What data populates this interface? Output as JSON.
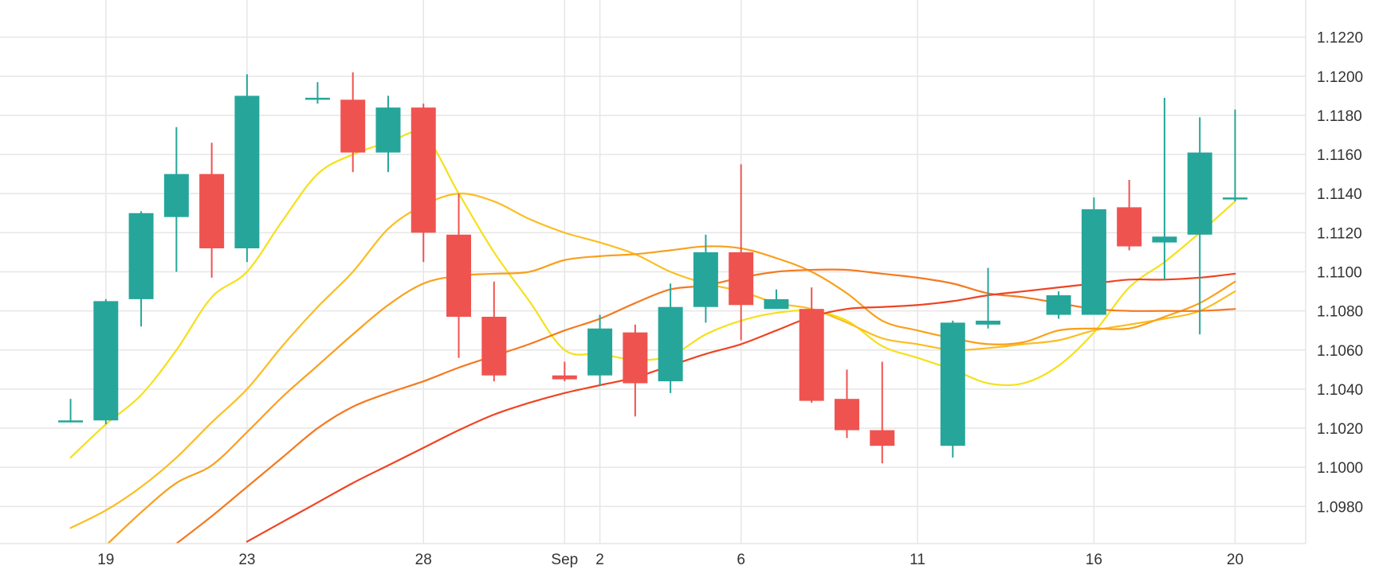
{
  "chart_data": {
    "type": "candlestick",
    "y_ticks": [
      "1.0980",
      "1.1000",
      "1.1020",
      "1.1040",
      "1.1060",
      "1.1080",
      "1.1100",
      "1.1120",
      "1.1140",
      "1.1160",
      "1.1180",
      "1.1200",
      "1.1220"
    ],
    "y_tick_values": [
      1.098,
      1.1,
      1.102,
      1.104,
      1.106,
      1.108,
      1.11,
      1.112,
      1.114,
      1.116,
      1.118,
      1.12,
      1.122
    ],
    "ylim": [
      1.0961,
      1.1239
    ],
    "grid": true,
    "x_ticks": [
      {
        "label": "19",
        "date": "2019-08-19"
      },
      {
        "label": "23",
        "date": "2019-08-23"
      },
      {
        "label": "28",
        "date": "2019-08-28"
      },
      {
        "label": "Sep",
        "date": "2019-09-01"
      },
      {
        "label": "2",
        "date": "2019-09-02"
      },
      {
        "label": "6",
        "date": "2019-09-06"
      },
      {
        "label": "11",
        "date": "2019-09-11"
      },
      {
        "label": "16",
        "date": "2019-09-16"
      },
      {
        "label": "20",
        "date": "2019-09-20"
      }
    ],
    "x_range": [
      "2019-08-16",
      "2019-09-22"
    ],
    "candles": [
      {
        "date": "2019-08-18",
        "open": 1.1024,
        "high": 1.1035,
        "low": 1.1023,
        "close": 1.1024
      },
      {
        "date": "2019-08-19",
        "open": 1.1024,
        "high": 1.1086,
        "low": 1.1022,
        "close": 1.1085
      },
      {
        "date": "2019-08-20",
        "open": 1.1086,
        "high": 1.1131,
        "low": 1.1072,
        "close": 1.113
      },
      {
        "date": "2019-08-21",
        "open": 1.1128,
        "high": 1.1174,
        "low": 1.11,
        "close": 1.115
      },
      {
        "date": "2019-08-22",
        "open": 1.115,
        "high": 1.1166,
        "low": 1.1097,
        "close": 1.1112
      },
      {
        "date": "2019-08-23",
        "open": 1.1112,
        "high": 1.1201,
        "low": 1.1105,
        "close": 1.119
      },
      {
        "date": "2019-08-25",
        "open": 1.1188,
        "high": 1.1197,
        "low": 1.1186,
        "close": 1.1189
      },
      {
        "date": "2019-08-26",
        "open": 1.1188,
        "high": 1.1202,
        "low": 1.1151,
        "close": 1.1161
      },
      {
        "date": "2019-08-27",
        "open": 1.1161,
        "high": 1.119,
        "low": 1.1151,
        "close": 1.1184
      },
      {
        "date": "2019-08-28",
        "open": 1.1184,
        "high": 1.1186,
        "low": 1.1105,
        "close": 1.112
      },
      {
        "date": "2019-08-29",
        "open": 1.1119,
        "high": 1.114,
        "low": 1.1056,
        "close": 1.1077
      },
      {
        "date": "2019-08-30",
        "open": 1.1077,
        "high": 1.1095,
        "low": 1.1044,
        "close": 1.1047
      },
      {
        "date": "2019-09-01",
        "open": 1.1047,
        "high": 1.1054,
        "low": 1.1044,
        "close": 1.1045
      },
      {
        "date": "2019-09-02",
        "open": 1.1047,
        "high": 1.1078,
        "low": 1.1042,
        "close": 1.1071
      },
      {
        "date": "2019-09-03",
        "open": 1.1069,
        "high": 1.1073,
        "low": 1.1026,
        "close": 1.1043
      },
      {
        "date": "2019-09-04",
        "open": 1.1044,
        "high": 1.1094,
        "low": 1.1038,
        "close": 1.1082
      },
      {
        "date": "2019-09-05",
        "open": 1.1082,
        "high": 1.1119,
        "low": 1.1074,
        "close": 1.111
      },
      {
        "date": "2019-09-06",
        "open": 1.111,
        "high": 1.1155,
        "low": 1.1065,
        "close": 1.1083
      },
      {
        "date": "2019-09-07",
        "open": 1.1081,
        "high": 1.1091,
        "low": 1.1081,
        "close": 1.1086
      },
      {
        "date": "2019-09-08",
        "open": 1.1081,
        "high": 1.1092,
        "low": 1.1033,
        "close": 1.1034
      },
      {
        "date": "2019-09-09",
        "open": 1.1035,
        "high": 1.105,
        "low": 1.1015,
        "close": 1.1019
      },
      {
        "date": "2019-09-10",
        "open": 1.1019,
        "high": 1.1054,
        "low": 1.1002,
        "close": 1.1011
      },
      {
        "date": "2019-09-12",
        "open": 1.1011,
        "high": 1.1075,
        "low": 1.1005,
        "close": 1.1074
      },
      {
        "date": "2019-09-13",
        "open": 1.1073,
        "high": 1.1102,
        "low": 1.1071,
        "close": 1.1075
      },
      {
        "date": "2019-09-15",
        "open": 1.1078,
        "high": 1.109,
        "low": 1.1076,
        "close": 1.1088
      },
      {
        "date": "2019-09-16",
        "open": 1.1078,
        "high": 1.1138,
        "low": 1.1078,
        "close": 1.1132
      },
      {
        "date": "2019-09-17",
        "open": 1.1133,
        "high": 1.1147,
        "low": 1.1111,
        "close": 1.1113
      },
      {
        "date": "2019-09-18",
        "open": 1.1115,
        "high": 1.1189,
        "low": 1.1096,
        "close": 1.1118
      },
      {
        "date": "2019-09-19",
        "open": 1.1119,
        "high": 1.1179,
        "low": 1.1068,
        "close": 1.1161
      },
      {
        "date": "2019-09-20",
        "open": 1.1137,
        "high": 1.1183,
        "low": 1.1136,
        "close": 1.1138
      }
    ],
    "ma_lines": [
      {
        "color": "#f5e11a",
        "points": [
          [
            "2019-08-18",
            1.1005
          ],
          [
            "2019-08-19",
            1.1022
          ],
          [
            "2019-08-20",
            1.1037
          ],
          [
            "2019-08-21",
            1.106
          ],
          [
            "2019-08-22",
            1.1087
          ],
          [
            "2019-08-23",
            1.11
          ],
          [
            "2019-08-24",
            1.1126
          ],
          [
            "2019-08-25",
            1.115
          ],
          [
            "2019-08-26",
            1.116
          ],
          [
            "2019-08-27",
            1.1166
          ],
          [
            "2019-08-28",
            1.117
          ],
          [
            "2019-08-29",
            1.114
          ],
          [
            "2019-08-30",
            1.111
          ],
          [
            "2019-08-31",
            1.1085
          ],
          [
            "2019-09-01",
            1.106
          ],
          [
            "2019-09-02",
            1.1058
          ],
          [
            "2019-09-03",
            1.1055
          ],
          [
            "2019-09-04",
            1.1057
          ],
          [
            "2019-09-05",
            1.1068
          ],
          [
            "2019-09-06",
            1.1075
          ],
          [
            "2019-09-07",
            1.1079
          ],
          [
            "2019-09-08",
            1.108
          ],
          [
            "2019-09-09",
            1.1075
          ],
          [
            "2019-09-10",
            1.1062
          ],
          [
            "2019-09-11",
            1.1056
          ],
          [
            "2019-09-12",
            1.105
          ],
          [
            "2019-09-13",
            1.1043
          ],
          [
            "2019-09-14",
            1.1043
          ],
          [
            "2019-09-15",
            1.1052
          ],
          [
            "2019-09-16",
            1.1069
          ],
          [
            "2019-09-17",
            1.1092
          ],
          [
            "2019-09-18",
            1.1105
          ],
          [
            "2019-09-19",
            1.112
          ],
          [
            "2019-09-20",
            1.1136
          ]
        ]
      },
      {
        "color": "#fbbd22",
        "points": [
          [
            "2019-08-18",
            1.0969
          ],
          [
            "2019-08-19",
            1.0978
          ],
          [
            "2019-08-20",
            1.099
          ],
          [
            "2019-08-21",
            1.1005
          ],
          [
            "2019-08-22",
            1.1023
          ],
          [
            "2019-08-23",
            1.104
          ],
          [
            "2019-08-24",
            1.1062
          ],
          [
            "2019-08-25",
            1.1082
          ],
          [
            "2019-08-26",
            1.11
          ],
          [
            "2019-08-27",
            1.1122
          ],
          [
            "2019-08-28",
            1.1134
          ],
          [
            "2019-08-29",
            1.114
          ],
          [
            "2019-08-30",
            1.1136
          ],
          [
            "2019-08-31",
            1.1127
          ],
          [
            "2019-09-01",
            1.112
          ],
          [
            "2019-09-02",
            1.1115
          ],
          [
            "2019-09-03",
            1.1109
          ],
          [
            "2019-09-04",
            1.11
          ],
          [
            "2019-09-05",
            1.1094
          ],
          [
            "2019-09-06",
            1.109
          ],
          [
            "2019-09-07",
            1.1084
          ],
          [
            "2019-09-08",
            1.1081
          ],
          [
            "2019-09-09",
            1.1074
          ],
          [
            "2019-09-10",
            1.1066
          ],
          [
            "2019-09-11",
            1.1063
          ],
          [
            "2019-09-12",
            1.106
          ],
          [
            "2019-09-13",
            1.1061
          ],
          [
            "2019-09-14",
            1.1063
          ],
          [
            "2019-09-15",
            1.1065
          ],
          [
            "2019-09-16",
            1.107
          ],
          [
            "2019-09-17",
            1.1073
          ],
          [
            "2019-09-18",
            1.1076
          ],
          [
            "2019-09-19",
            1.108
          ],
          [
            "2019-09-20",
            1.109
          ]
        ]
      },
      {
        "color": "#f9a01b",
        "points": [
          [
            "2019-08-19",
            1.096
          ],
          [
            "2019-08-20",
            1.0977
          ],
          [
            "2019-08-21",
            1.0992
          ],
          [
            "2019-08-22",
            1.1001
          ],
          [
            "2019-08-23",
            1.1018
          ],
          [
            "2019-08-24",
            1.1036
          ],
          [
            "2019-08-25",
            1.1052
          ],
          [
            "2019-08-26",
            1.1068
          ],
          [
            "2019-08-27",
            1.1083
          ],
          [
            "2019-08-28",
            1.1094
          ],
          [
            "2019-08-29",
            1.1098
          ],
          [
            "2019-08-30",
            1.1099
          ],
          [
            "2019-08-31",
            1.11
          ],
          [
            "2019-09-01",
            1.1106
          ],
          [
            "2019-09-02",
            1.1108
          ],
          [
            "2019-09-03",
            1.1109
          ],
          [
            "2019-09-04",
            1.1111
          ],
          [
            "2019-09-05",
            1.1113
          ],
          [
            "2019-09-06",
            1.1112
          ],
          [
            "2019-09-07",
            1.1107
          ],
          [
            "2019-09-08",
            1.11
          ],
          [
            "2019-09-09",
            1.1089
          ],
          [
            "2019-09-10",
            1.1075
          ],
          [
            "2019-09-11",
            1.107
          ],
          [
            "2019-09-12",
            1.1066
          ],
          [
            "2019-09-13",
            1.1063
          ],
          [
            "2019-09-14",
            1.1064
          ],
          [
            "2019-09-15",
            1.107
          ],
          [
            "2019-09-16",
            1.1071
          ],
          [
            "2019-09-17",
            1.1071
          ],
          [
            "2019-09-18",
            1.1077
          ],
          [
            "2019-09-19",
            1.1084
          ],
          [
            "2019-09-20",
            1.1095
          ]
        ]
      },
      {
        "color": "#f47a1f",
        "points": [
          [
            "2019-08-21",
            1.0961
          ],
          [
            "2019-08-22",
            1.0975
          ],
          [
            "2019-08-23",
            1.099
          ],
          [
            "2019-08-24",
            1.1005
          ],
          [
            "2019-08-25",
            1.102
          ],
          [
            "2019-08-26",
            1.1031
          ],
          [
            "2019-08-27",
            1.1038
          ],
          [
            "2019-08-28",
            1.1044
          ],
          [
            "2019-08-29",
            1.1051
          ],
          [
            "2019-08-30",
            1.1057
          ],
          [
            "2019-08-31",
            1.1063
          ],
          [
            "2019-09-01",
            1.107
          ],
          [
            "2019-09-02",
            1.1076
          ],
          [
            "2019-09-03",
            1.1084
          ],
          [
            "2019-09-04",
            1.1091
          ],
          [
            "2019-09-05",
            1.1093
          ],
          [
            "2019-09-06",
            1.1097
          ],
          [
            "2019-09-07",
            1.11
          ],
          [
            "2019-09-08",
            1.1101
          ],
          [
            "2019-09-09",
            1.1101
          ],
          [
            "2019-09-10",
            1.1099
          ],
          [
            "2019-09-11",
            1.1097
          ],
          [
            "2019-09-12",
            1.1094
          ],
          [
            "2019-09-13",
            1.1089
          ],
          [
            "2019-09-14",
            1.1087
          ],
          [
            "2019-09-15",
            1.1084
          ],
          [
            "2019-09-16",
            1.1081
          ],
          [
            "2019-09-17",
            1.108
          ],
          [
            "2019-09-18",
            1.108
          ],
          [
            "2019-09-19",
            1.108
          ],
          [
            "2019-09-20",
            1.1081
          ]
        ]
      },
      {
        "color": "#ef4423",
        "points": [
          [
            "2019-08-23",
            1.0962
          ],
          [
            "2019-08-24",
            1.0972
          ],
          [
            "2019-08-25",
            1.0982
          ],
          [
            "2019-08-26",
            1.0992
          ],
          [
            "2019-08-27",
            1.1001
          ],
          [
            "2019-08-28",
            1.101
          ],
          [
            "2019-08-29",
            1.1019
          ],
          [
            "2019-08-30",
            1.1027
          ],
          [
            "2019-08-31",
            1.1033
          ],
          [
            "2019-09-01",
            1.1038
          ],
          [
            "2019-09-02",
            1.1042
          ],
          [
            "2019-09-03",
            1.1046
          ],
          [
            "2019-09-04",
            1.1052
          ],
          [
            "2019-09-05",
            1.1058
          ],
          [
            "2019-09-06",
            1.1063
          ],
          [
            "2019-09-07",
            1.107
          ],
          [
            "2019-09-08",
            1.1077
          ],
          [
            "2019-09-09",
            1.1081
          ],
          [
            "2019-09-10",
            1.1082
          ],
          [
            "2019-09-11",
            1.1083
          ],
          [
            "2019-09-12",
            1.1085
          ],
          [
            "2019-09-13",
            1.1088
          ],
          [
            "2019-09-14",
            1.109
          ],
          [
            "2019-09-15",
            1.1092
          ],
          [
            "2019-09-16",
            1.1094
          ],
          [
            "2019-09-17",
            1.1096
          ],
          [
            "2019-09-18",
            1.1096
          ],
          [
            "2019-09-19",
            1.1097
          ],
          [
            "2019-09-20",
            1.1099
          ]
        ]
      }
    ],
    "colors": {
      "up": "#26a69a",
      "down": "#ef5350",
      "grid": "#e6e6e6",
      "axis_text": "#333333",
      "background": "#ffffff"
    }
  }
}
